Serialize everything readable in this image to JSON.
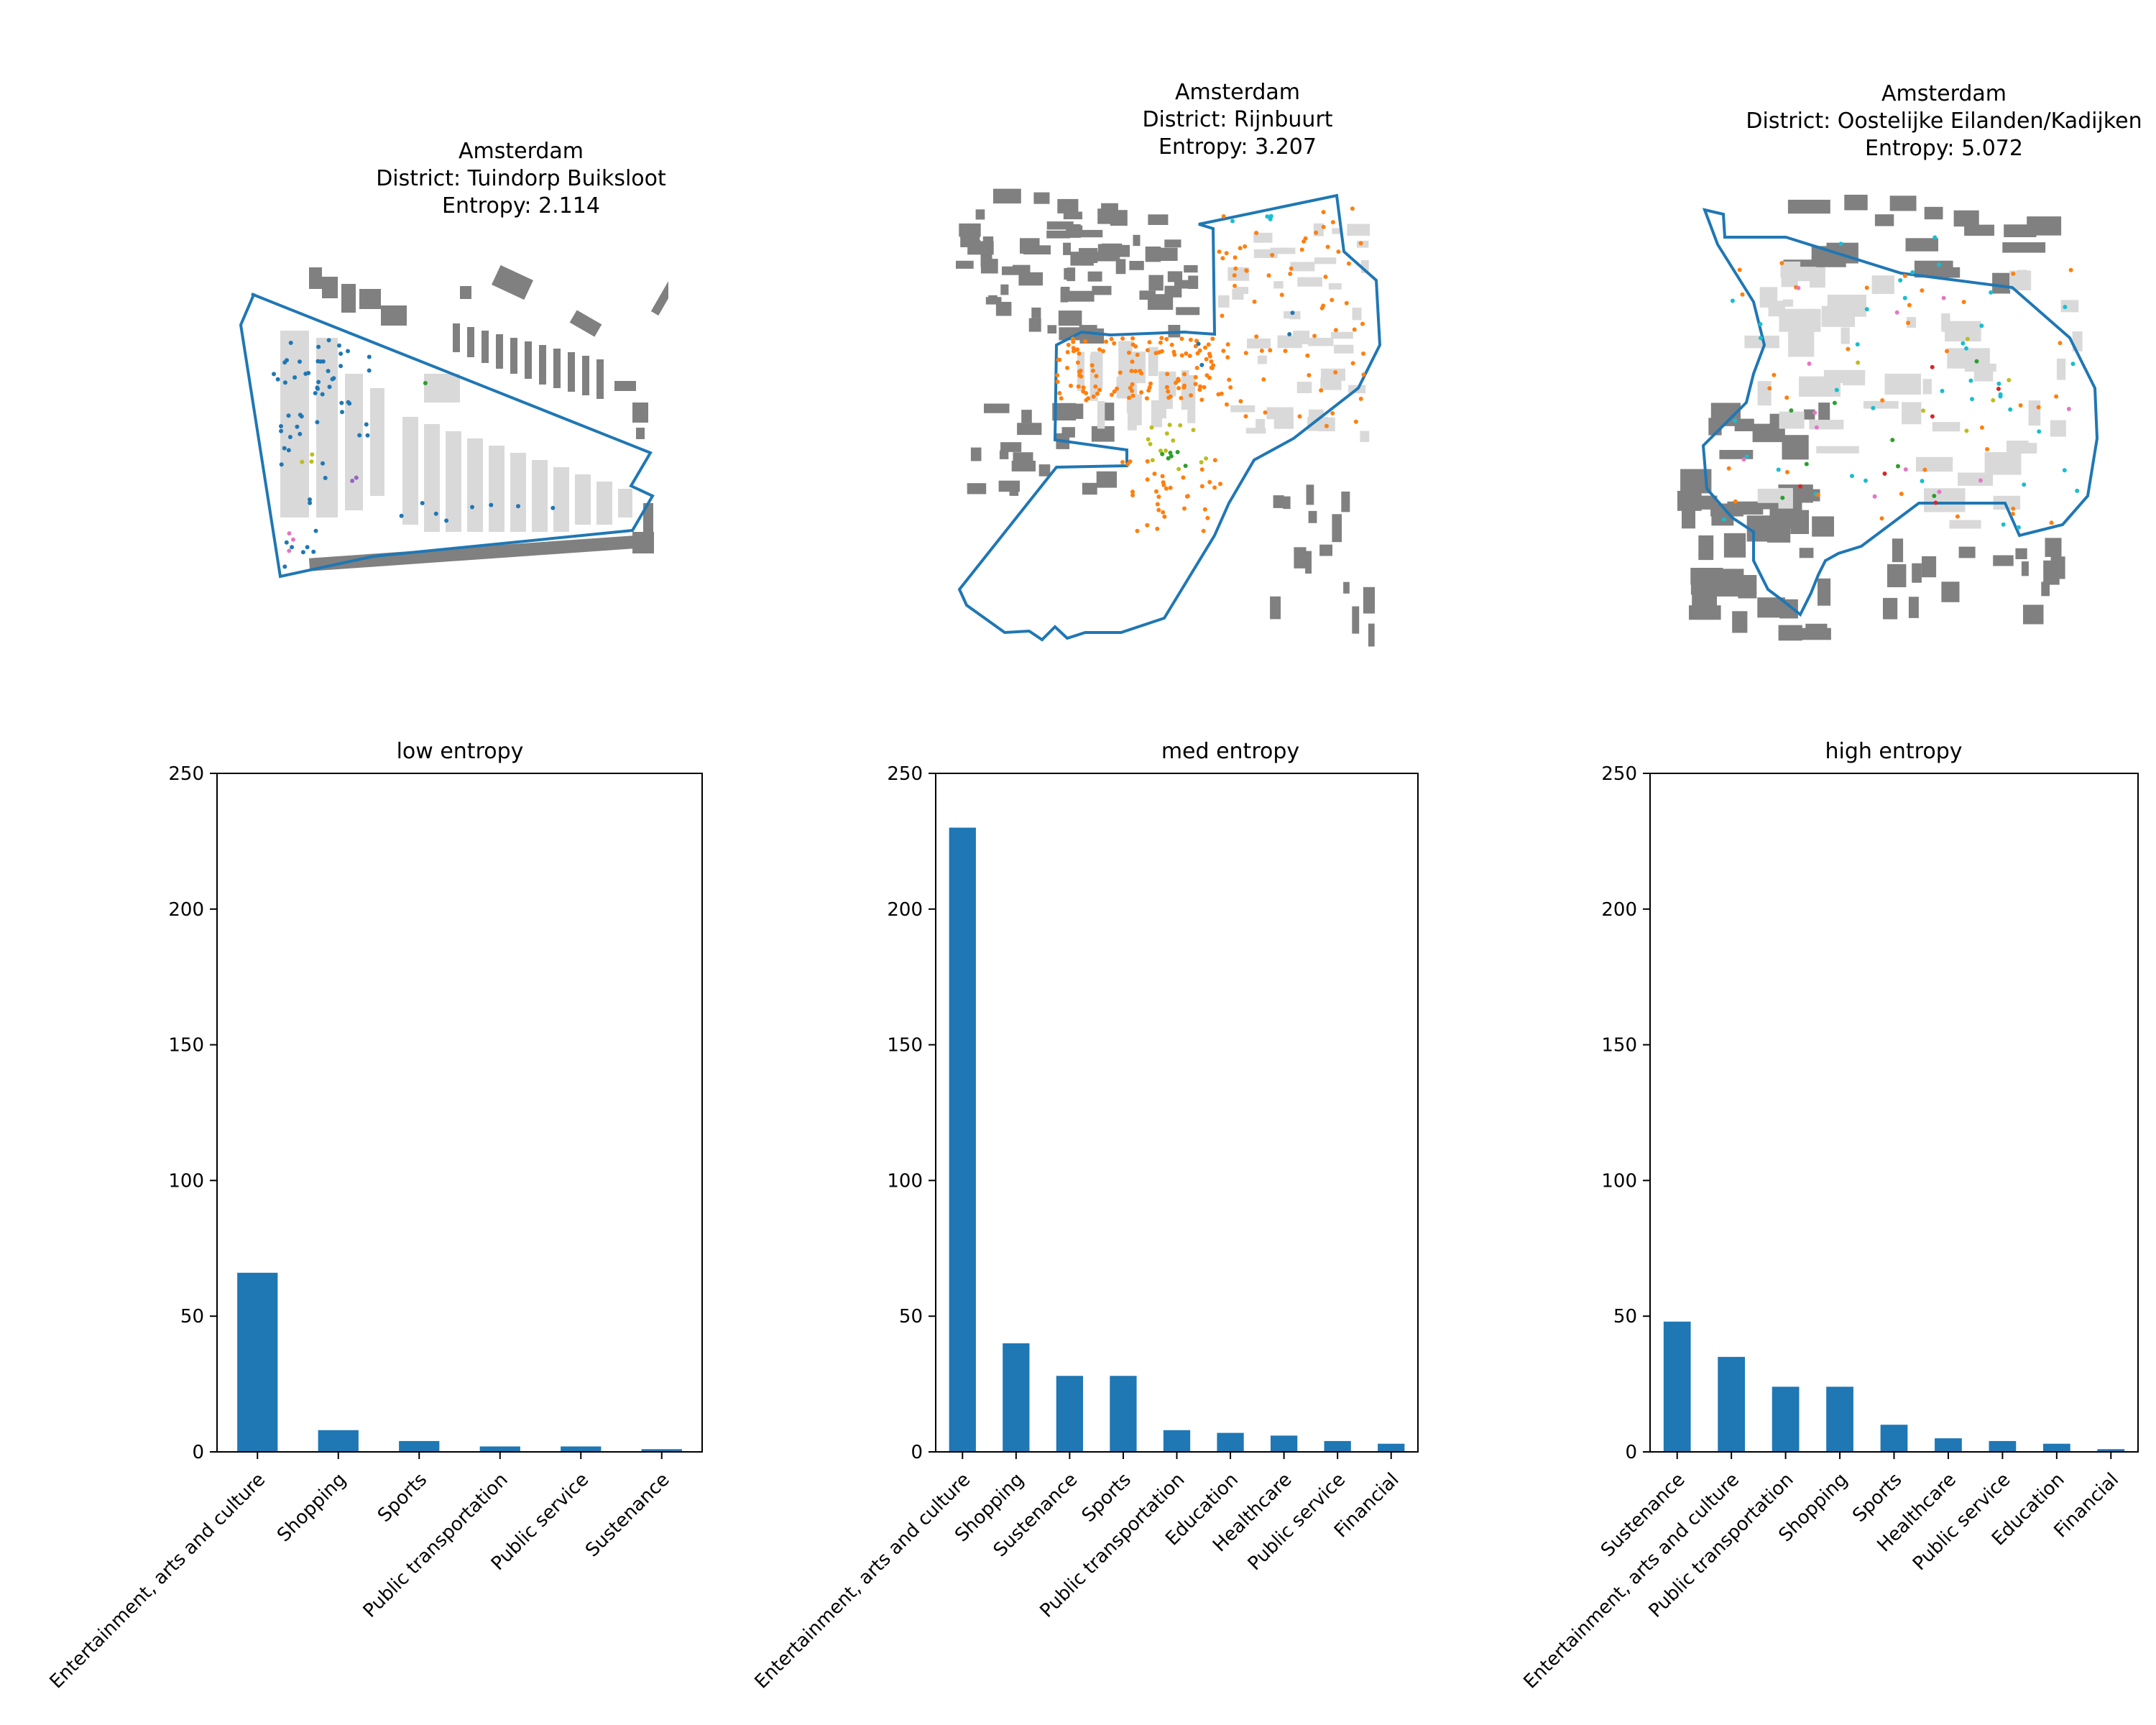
{
  "maps": [
    {
      "city": "Amsterdam",
      "district": "District: Tuindorp Buiksloot",
      "entropy": "Entropy: 2.114"
    },
    {
      "city": "Amsterdam",
      "district": "District: Rijnbuurt",
      "entropy": "Entropy: 3.207"
    },
    {
      "city": "Amsterdam",
      "district": "District: Oostelijke Eilanden/Kadijken",
      "entropy": "Entropy: 5.072"
    }
  ],
  "colors": {
    "bar": "#1f77b4",
    "boundary": "#1f77b4",
    "building_outside": "#808080",
    "building_inside": "#d9d9d9",
    "poi_orange": "#ff7f0e",
    "poi_blue": "#1f77b4",
    "poi_cyan": "#17becf",
    "poi_green": "#2ca02c",
    "poi_olive": "#bcbd22",
    "poi_pink": "#e377c2",
    "poi_purple": "#9467bd",
    "poi_red": "#d62728"
  },
  "chart_data": [
    {
      "type": "bar",
      "title": "low entropy",
      "categories": [
        "Entertainment, arts and culture",
        "Shopping",
        "Sports",
        "Public transportation",
        "Public service",
        "Sustenance"
      ],
      "values": [
        66,
        8,
        4,
        2,
        2,
        1
      ],
      "ylim": [
        0,
        250
      ],
      "yticks": [
        0,
        50,
        100,
        150,
        200,
        250
      ],
      "xlabel": "",
      "ylabel": "",
      "grid": false
    },
    {
      "type": "bar",
      "title": "med entropy",
      "categories": [
        "Entertainment, arts and culture",
        "Shopping",
        "Sustenance",
        "Sports",
        "Public transportation",
        "Education",
        "Healthcare",
        "Public service",
        "Financial"
      ],
      "values": [
        230,
        40,
        28,
        28,
        8,
        7,
        6,
        4,
        3
      ],
      "ylim": [
        0,
        250
      ],
      "yticks": [
        0,
        50,
        100,
        150,
        200,
        250
      ],
      "xlabel": "",
      "ylabel": "",
      "grid": false
    },
    {
      "type": "bar",
      "title": "high entropy",
      "categories": [
        "Sustenance",
        "Entertainment, arts and culture",
        "Public transportation",
        "Shopping",
        "Sports",
        "Healthcare",
        "Public service",
        "Education",
        "Financial"
      ],
      "values": [
        48,
        35,
        24,
        24,
        10,
        5,
        4,
        3,
        1
      ],
      "ylim": [
        0,
        250
      ],
      "yticks": [
        0,
        50,
        100,
        150,
        200,
        250
      ],
      "xlabel": "",
      "ylabel": "",
      "grid": false
    }
  ]
}
